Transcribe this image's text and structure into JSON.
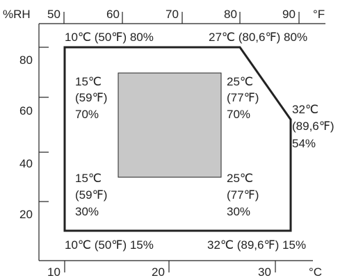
{
  "units": {
    "rh": "%RH",
    "fahrenheit": "°F",
    "celsius": "°C"
  },
  "top_axis_ticks": [
    "50",
    "60",
    "70",
    "80",
    "90"
  ],
  "bottom_axis_ticks": [
    "10",
    "20",
    "30"
  ],
  "left_axis_ticks": [
    "80",
    "60",
    "40",
    "20"
  ],
  "outer_corners": {
    "top_left": "10℃ (50℉) 80%",
    "top_right": "27℃ (80,6℉) 80%",
    "bottom_left": "10℃ (50℉) 15%",
    "bottom_right": "32℃ (89,6℉) 15%",
    "right_temp_c": "32℃",
    "right_temp_f": "(89,6℉)",
    "right_rh": "54%"
  },
  "inner_corners": {
    "tl": {
      "c": "15℃",
      "f": "(59℉)",
      "rh": "70%"
    },
    "tr": {
      "c": "25℃",
      "f": "(77℉)",
      "rh": "70%"
    },
    "bl": {
      "c": "15℃",
      "f": "(59℉)",
      "rh": "30%"
    },
    "br": {
      "c": "25℃",
      "f": "(77℉)",
      "rh": "30%"
    }
  },
  "colors": {
    "line": "#222222",
    "recommended_zone": "#c8c8c8"
  }
}
